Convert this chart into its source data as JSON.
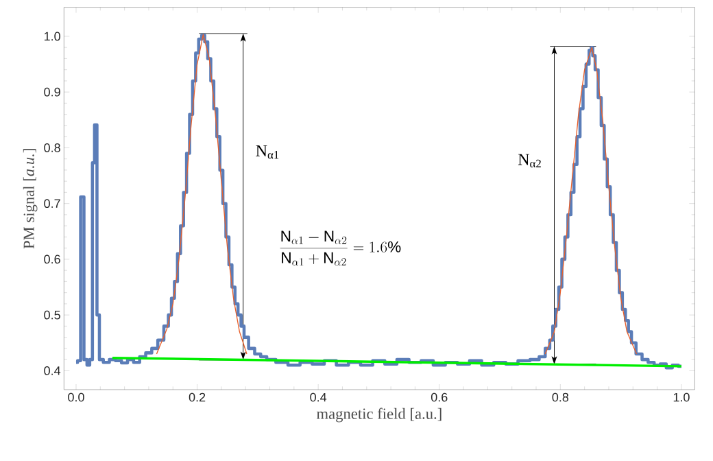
{
  "chart_data": {
    "type": "line",
    "xlabel": "magnetic field [a.u.]",
    "ylabel": "PM signal [*a.u.*]",
    "xlim": [
      -0.02,
      1.022
    ],
    "ylim": [
      0.366,
      1.052
    ],
    "xticks": [
      {
        "value": 0,
        "label": "0.0"
      },
      0.2,
      0.4,
      0.6,
      0.8,
      {
        "value": 1,
        "label": "1.0"
      }
    ],
    "yticks": [
      0.4,
      0.5,
      0.6,
      0.7,
      0.8,
      0.9,
      {
        "value": 1,
        "label": "1.0"
      }
    ],
    "series": [
      {
        "type": "step",
        "color": "#5b7db8",
        "x": [
          0.0,
          0.005,
          0.01,
          0.016,
          0.02,
          0.025,
          0.029,
          0.032,
          0.037,
          0.04,
          0.05,
          0.06,
          0.07,
          0.08,
          0.09,
          0.1,
          0.11,
          0.12,
          0.13,
          0.14,
          0.15,
          0.155,
          0.16,
          0.165,
          0.17,
          0.175,
          0.18,
          0.185,
          0.19,
          0.195,
          0.2,
          0.205,
          0.21,
          0.215,
          0.22,
          0.225,
          0.23,
          0.235,
          0.24,
          0.245,
          0.25,
          0.255,
          0.26,
          0.265,
          0.27,
          0.275,
          0.28,
          0.29,
          0.3,
          0.31,
          0.32,
          0.34,
          0.36,
          0.38,
          0.4,
          0.42,
          0.44,
          0.46,
          0.48,
          0.5,
          0.52,
          0.54,
          0.56,
          0.58,
          0.6,
          0.62,
          0.64,
          0.66,
          0.68,
          0.7,
          0.72,
          0.74,
          0.76,
          0.77,
          0.78,
          0.785,
          0.79,
          0.795,
          0.8,
          0.805,
          0.81,
          0.815,
          0.82,
          0.825,
          0.83,
          0.835,
          0.84,
          0.845,
          0.85,
          0.852,
          0.855,
          0.86,
          0.865,
          0.87,
          0.875,
          0.88,
          0.885,
          0.89,
          0.895,
          0.9,
          0.905,
          0.91,
          0.915,
          0.92,
          0.93,
          0.94,
          0.95,
          0.96,
          0.97,
          0.98,
          0.99,
          1.0
        ],
        "values": [
          0.415,
          0.418,
          0.712,
          0.42,
          0.41,
          0.42,
          0.773,
          0.841,
          0.5,
          0.42,
          0.415,
          0.42,
          0.418,
          0.414,
          0.42,
          0.415,
          0.425,
          0.432,
          0.44,
          0.455,
          0.48,
          0.5,
          0.53,
          0.56,
          0.61,
          0.66,
          0.72,
          0.79,
          0.86,
          0.92,
          0.97,
          0.995,
          1.002,
          0.99,
          0.96,
          0.92,
          0.87,
          0.82,
          0.76,
          0.7,
          0.64,
          0.59,
          0.55,
          0.52,
          0.5,
          0.48,
          0.46,
          0.44,
          0.43,
          0.425,
          0.42,
          0.415,
          0.41,
          0.415,
          0.412,
          0.418,
          0.41,
          0.415,
          0.41,
          0.418,
          0.412,
          0.42,
          0.415,
          0.418,
          0.41,
          0.415,
          0.412,
          0.418,
          0.41,
          0.415,
          0.412,
          0.418,
          0.42,
          0.425,
          0.44,
          0.455,
          0.48,
          0.51,
          0.55,
          0.6,
          0.64,
          0.68,
          0.72,
          0.77,
          0.82,
          0.87,
          0.91,
          0.95,
          0.975,
          0.98,
          0.965,
          0.94,
          0.89,
          0.84,
          0.78,
          0.73,
          0.68,
          0.63,
          0.58,
          0.54,
          0.51,
          0.49,
          0.47,
          0.45,
          0.43,
          0.42,
          0.415,
          0.41,
          0.412,
          0.405,
          0.41,
          0.408
        ]
      },
      {
        "type": "line",
        "color": "#e8602c",
        "x": [
          0.133,
          0.15,
          0.16,
          0.17,
          0.18,
          0.19,
          0.2,
          0.21,
          0.22,
          0.23,
          0.24,
          0.25,
          0.26,
          0.27,
          0.282,
          0.5,
          0.775,
          0.79,
          0.8,
          0.81,
          0.82,
          0.83,
          0.84,
          0.852,
          0.86,
          0.87,
          0.88,
          0.89,
          0.9,
          0.91,
          0.926
        ],
        "values": [
          0.43,
          0.475,
          0.52,
          0.6,
          0.71,
          0.84,
          0.95,
          1.003,
          0.96,
          0.86,
          0.74,
          0.62,
          0.53,
          0.47,
          0.43,
          null,
          0.43,
          0.47,
          0.54,
          0.64,
          0.75,
          0.86,
          0.94,
          0.98,
          0.94,
          0.85,
          0.73,
          0.62,
          0.53,
          0.47,
          0.43
        ]
      },
      {
        "type": "line",
        "color": "#00ee00",
        "x": [
          0.06,
          1.0
        ],
        "values": [
          0.423,
          0.408
        ]
      }
    ],
    "annotations": [
      "N$_{α1}$",
      "N$_{α2}$",
      "\\frac{\\mathrm{N}_{\\alpha 1}-\\mathrm{N}_{\\alpha 2}}{\\mathrm{N}_{\\alpha 1}+\\mathrm{N}_{\\alpha 2}} = 1.6\\%"
    ]
  }
}
